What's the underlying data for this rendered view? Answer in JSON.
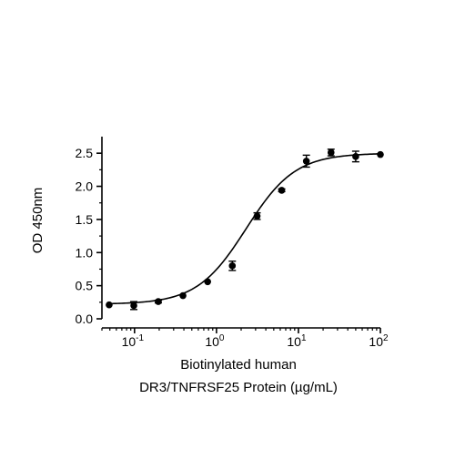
{
  "chart_data": {
    "type": "scatter",
    "title": "",
    "xlabel_lines": [
      "Biotinylated human",
      "DR3/TNFRSF25 Protein (µg/mL)"
    ],
    "ylabel": "OD 450nm",
    "x_scale": "log10",
    "xlim": [
      0.04,
      100
    ],
    "ylim": [
      0,
      2.75
    ],
    "x_ticks": [
      {
        "value": 0.1,
        "base": "10",
        "exp": "-1"
      },
      {
        "value": 1,
        "base": "10",
        "exp": "0"
      },
      {
        "value": 10,
        "base": "10",
        "exp": "1"
      },
      {
        "value": 100,
        "base": "10",
        "exp": "2"
      }
    ],
    "y_ticks": [
      {
        "value": 0.0,
        "label": "0.0"
      },
      {
        "value": 0.5,
        "label": "0.5"
      },
      {
        "value": 1.0,
        "label": "1.0"
      },
      {
        "value": 1.5,
        "label": "1.5"
      },
      {
        "value": 2.0,
        "label": "2.0"
      },
      {
        "value": 2.5,
        "label": "2.5"
      }
    ],
    "grid": false,
    "series": [
      {
        "x": [
          0.049,
          0.098,
          0.195,
          0.39,
          0.78,
          1.56,
          3.13,
          6.25,
          12.5,
          25,
          50,
          100
        ],
        "y": [
          0.21,
          0.2,
          0.26,
          0.35,
          0.56,
          0.8,
          1.55,
          1.94,
          2.38,
          2.51,
          2.45,
          2.48
        ],
        "err": [
          0.01,
          0.06,
          0.02,
          0.01,
          0.01,
          0.07,
          0.05,
          0.02,
          0.09,
          0.05,
          0.08,
          0.01
        ]
      }
    ],
    "fit": {
      "model": "4PL",
      "bottom": 0.22,
      "top": 2.5,
      "ec50": 2.3,
      "hill": 1.45
    },
    "colors": {
      "axis": "#000000",
      "markers": "#000000",
      "curve": "#000000"
    }
  }
}
